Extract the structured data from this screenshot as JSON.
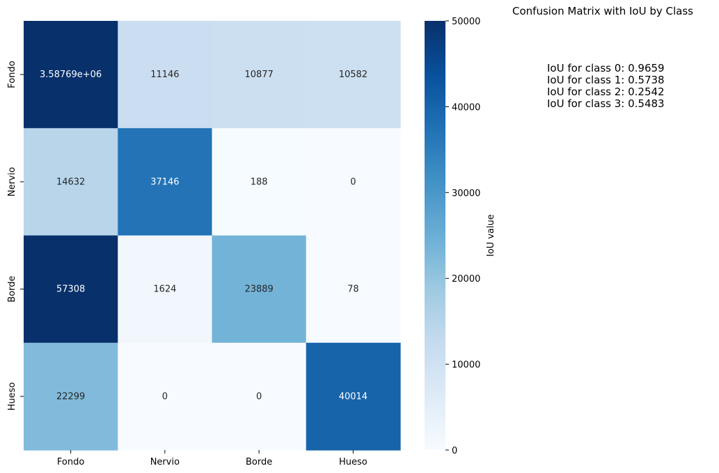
{
  "title": "Confusion Matrix with IoU by Class",
  "iou_lines": [
    "IoU for class 0: 0.9659",
    "IoU for class 1: 0.5738",
    "IoU for class 2: 0.2542",
    "IoU for class 3: 0.5483"
  ],
  "chart_data": {
    "type": "heatmap",
    "x_categories": [
      "Fondo",
      "Nervio",
      "Borde",
      "Hueso"
    ],
    "y_categories": [
      "Fondo",
      "Nervio",
      "Borde",
      "Hueso"
    ],
    "values": [
      [
        3587690,
        11146,
        10877,
        10582
      ],
      [
        14632,
        37146,
        188,
        0
      ],
      [
        57308,
        1624,
        23889,
        78
      ],
      [
        22299,
        0,
        0,
        40014
      ]
    ],
    "cell_labels": [
      [
        "3.58769e+06",
        "11146",
        "10877",
        "10582"
      ],
      [
        "14632",
        "37146",
        "188",
        "0"
      ],
      [
        "57308",
        "1624",
        "23889",
        "78"
      ],
      [
        "22299",
        "0",
        "0",
        "40014"
      ]
    ],
    "colorbar": {
      "label": "IoU value",
      "range": [
        0,
        50000
      ],
      "ticks": [
        0,
        10000,
        20000,
        30000,
        40000,
        50000
      ],
      "colormap": "Blues"
    }
  }
}
